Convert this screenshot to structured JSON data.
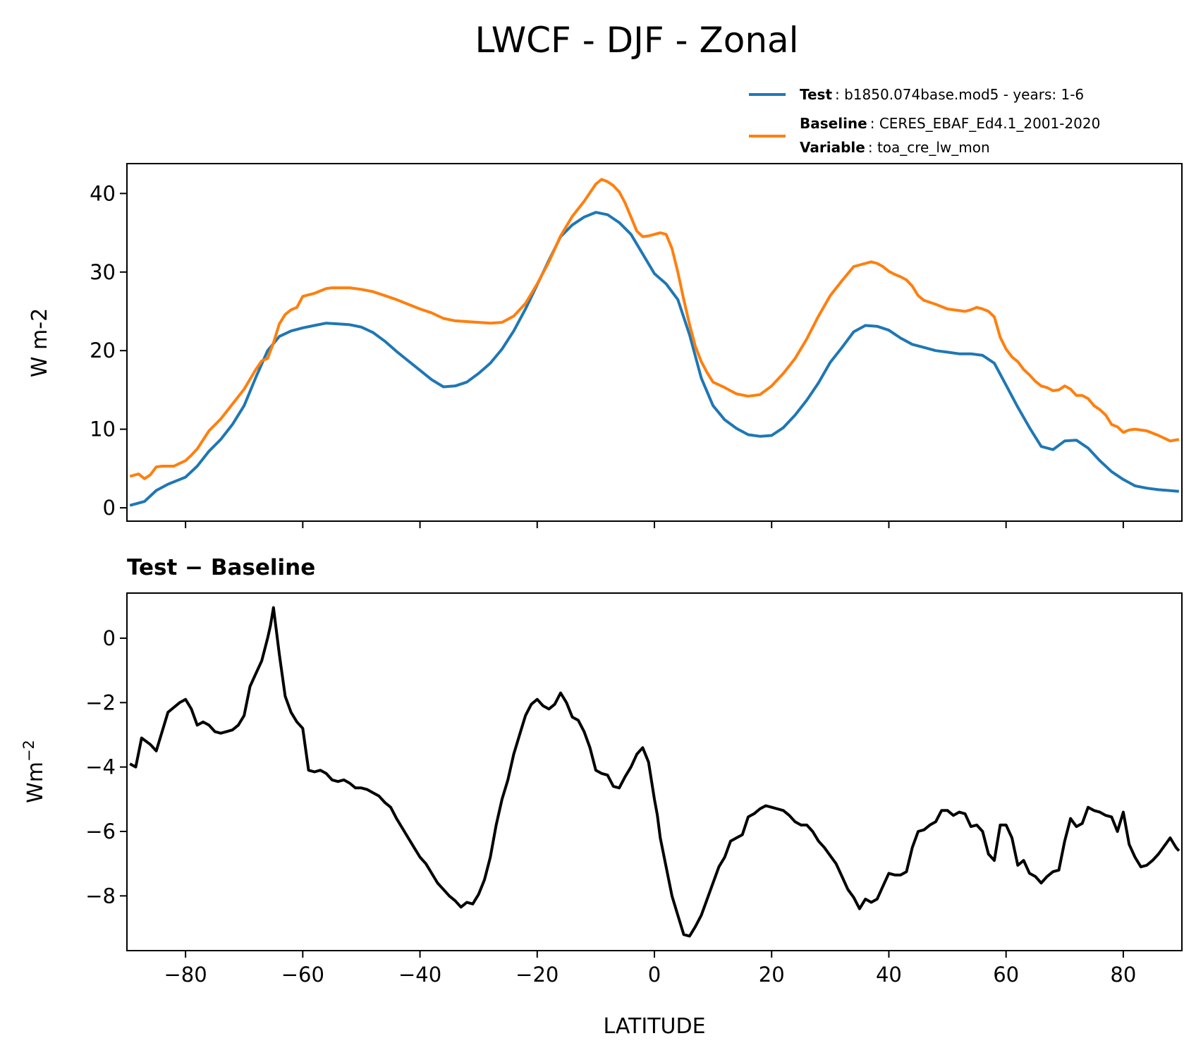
{
  "chart_data": [
    {
      "type": "line",
      "title": "LWCF - DJF - Zonal",
      "ylabel": "W m-2",
      "xlim": [
        -90,
        90
      ],
      "ylim": [
        -1.7,
        43.8
      ],
      "yticks": [
        0,
        10,
        20,
        30,
        40
      ],
      "xticks": [
        -80,
        -60,
        -40,
        -20,
        0,
        20,
        40,
        60,
        80
      ],
      "legend": [
        {
          "bold": "Test",
          "text": ": b1850.074base.mod5 - years: 1-6",
          "color": "#1f77b4"
        },
        {
          "bold": "Baseline",
          "text": ": CERES_EBAF_Ed4.1_2001-2020",
          "color": "#ff7f0e"
        },
        {
          "bold": "Variable",
          "text": ": toa_cre_lw_mon"
        }
      ],
      "series": [
        {
          "name": "Test",
          "color": "#1f77b4",
          "x": [
            -89.5,
            -87,
            -85,
            -83,
            -80,
            -78,
            -76,
            -74,
            -72,
            -70,
            -68,
            -66,
            -64,
            -62,
            -60,
            -58,
            -56,
            -54,
            -52,
            -50,
            -48,
            -46,
            -44,
            -42,
            -40,
            -38,
            -36,
            -34,
            -32,
            -30,
            -28,
            -26,
            -24,
            -22,
            -20,
            -18,
            -16,
            -14,
            -12,
            -10,
            -8,
            -6,
            -4,
            -2,
            0,
            2,
            4,
            6,
            8,
            10,
            12,
            14,
            16,
            18,
            20,
            22,
            24,
            26,
            28,
            30,
            32,
            34,
            36,
            38,
            40,
            42,
            44,
            46,
            48,
            50,
            52,
            54,
            56,
            58,
            60,
            62,
            64,
            66,
            68,
            70,
            72,
            74,
            76,
            78,
            80,
            82,
            84,
            86,
            89.5
          ],
          "values": [
            0.3,
            0.8,
            2.2,
            3.0,
            3.9,
            5.3,
            7.2,
            8.7,
            10.6,
            13.0,
            16.6,
            20.0,
            21.8,
            22.5,
            22.9,
            23.2,
            23.5,
            23.4,
            23.3,
            23.0,
            22.3,
            21.2,
            19.9,
            18.7,
            17.5,
            16.3,
            15.4,
            15.5,
            16.0,
            17.1,
            18.4,
            20.2,
            22.5,
            25.3,
            28.4,
            31.5,
            34.5,
            36.0,
            37.0,
            37.6,
            37.3,
            36.3,
            34.8,
            32.3,
            29.8,
            28.5,
            26.5,
            22.0,
            16.5,
            13.0,
            11.2,
            10.1,
            9.3,
            9.1,
            9.2,
            10.2,
            11.8,
            13.7,
            15.9,
            18.5,
            20.4,
            22.4,
            23.2,
            23.1,
            22.6,
            21.6,
            20.8,
            20.4,
            20.0,
            19.8,
            19.6,
            19.6,
            19.4,
            18.4,
            15.6,
            12.8,
            10.2,
            7.8,
            7.4,
            8.5,
            8.6,
            7.6,
            6.0,
            4.6,
            3.6,
            2.8,
            2.5,
            2.3,
            2.1
          ]
        },
        {
          "name": "Baseline",
          "color": "#ff7f0e",
          "x": [
            -89.5,
            -88,
            -87,
            -86,
            -85,
            -84,
            -82,
            -80,
            -79,
            -78,
            -76,
            -74,
            -72,
            -70,
            -68,
            -67,
            -66,
            -65,
            -64,
            -63,
            -62,
            -61,
            -60,
            -59,
            -58,
            -57,
            -56,
            -55,
            -54,
            -52,
            -50,
            -48,
            -46,
            -44,
            -42,
            -40,
            -38,
            -36,
            -34,
            -32,
            -30,
            -28,
            -26,
            -24,
            -22,
            -20,
            -18,
            -16,
            -14,
            -12,
            -10,
            -9,
            -8,
            -7,
            -6,
            -5,
            -4,
            -3,
            -2,
            -1,
            0,
            1,
            2,
            3,
            4,
            5,
            6,
            7,
            8,
            9,
            10,
            12,
            14,
            16,
            18,
            20,
            22,
            24,
            26,
            28,
            30,
            32,
            34,
            36,
            37,
            38,
            39,
            40,
            41,
            42,
            43,
            44,
            45,
            46,
            48,
            50,
            52,
            53,
            54,
            55,
            56,
            57,
            58,
            59,
            60,
            61,
            62,
            63,
            64,
            65,
            66,
            67,
            68,
            69,
            70,
            71,
            72,
            73,
            74,
            75,
            76,
            77,
            78,
            79,
            80,
            81,
            82,
            84,
            86,
            88,
            89.5
          ],
          "values": [
            4.0,
            4.3,
            3.7,
            4.2,
            5.2,
            5.3,
            5.3,
            6.0,
            6.7,
            7.5,
            9.8,
            11.3,
            13.2,
            15.1,
            17.6,
            18.7,
            19.0,
            21.0,
            23.4,
            24.6,
            25.2,
            25.5,
            26.9,
            27.1,
            27.3,
            27.6,
            27.9,
            28.0,
            28.0,
            28.0,
            27.8,
            27.5,
            27.0,
            26.5,
            25.9,
            25.3,
            24.8,
            24.1,
            23.8,
            23.7,
            23.6,
            23.5,
            23.6,
            24.4,
            26.0,
            28.5,
            31.3,
            34.6,
            37.1,
            39.0,
            41.2,
            41.8,
            41.5,
            41.0,
            40.2,
            38.8,
            37.0,
            35.2,
            34.5,
            34.6,
            34.8,
            35.0,
            34.8,
            33.0,
            30.0,
            26.5,
            23.3,
            20.5,
            18.6,
            17.2,
            16.0,
            15.3,
            14.5,
            14.2,
            14.4,
            15.5,
            17.1,
            19.0,
            21.5,
            24.4,
            27.0,
            28.9,
            30.7,
            31.1,
            31.3,
            31.1,
            30.7,
            30.1,
            29.7,
            29.4,
            29.0,
            28.2,
            27.0,
            26.4,
            25.9,
            25.3,
            25.1,
            25.0,
            25.2,
            25.5,
            25.3,
            25.0,
            24.3,
            21.7,
            20.2,
            19.2,
            18.6,
            17.6,
            16.9,
            16.1,
            15.5,
            15.3,
            14.9,
            15.0,
            15.5,
            15.1,
            14.3,
            14.3,
            13.9,
            13.0,
            12.5,
            11.8,
            10.6,
            10.3,
            9.6,
            9.9,
            10.0,
            9.8,
            9.2,
            8.5,
            8.7
          ]
        }
      ]
    },
    {
      "type": "line",
      "title": "Test − Baseline",
      "xlabel": "LATITUDE",
      "ylabel": "Wm",
      "ylabel_sup": "−2",
      "xlim": [
        -90,
        90
      ],
      "ylim": [
        -9.7,
        1.4
      ],
      "yticks": [
        0,
        -2,
        -4,
        -6,
        -8
      ],
      "xticks": [
        -80,
        -60,
        -40,
        -20,
        0,
        20,
        40,
        60,
        80
      ],
      "series": [
        {
          "name": "Test − Baseline",
          "color": "#000000",
          "x": [
            -89.5,
            -88.5,
            -87.5,
            -86,
            -85,
            -84,
            -83,
            -81,
            -80,
            -79,
            -78,
            -77,
            -76,
            -75,
            -74,
            -73,
            -72,
            -71,
            -70,
            -69,
            -68,
            -67,
            -66,
            -65.5,
            -65,
            -64,
            -63,
            -62,
            -61,
            -60,
            -59,
            -58,
            -57,
            -56,
            -55,
            -54,
            -53,
            -52,
            -51,
            -50,
            -49,
            -48,
            -47,
            -46,
            -45,
            -44,
            -43,
            -42,
            -41,
            -40,
            -39,
            -38,
            -37,
            -36,
            -35,
            -34,
            -33,
            -32,
            -31,
            -30,
            -29,
            -28,
            -27,
            -26,
            -25,
            -24,
            -23,
            -22,
            -21,
            -20,
            -19,
            -18,
            -17,
            -16,
            -15,
            -14,
            -13,
            -12,
            -11,
            -10,
            -9,
            -8,
            -7,
            -6,
            -5,
            -4,
            -3,
            -2,
            -1,
            0,
            0.5,
            1,
            2,
            3,
            4,
            5,
            6,
            7,
            8,
            9,
            10,
            11,
            12,
            13,
            14,
            15,
            16,
            17,
            18,
            19,
            20,
            21,
            22,
            23,
            24,
            25,
            26,
            27,
            28,
            29,
            30,
            31,
            32,
            33,
            34,
            35,
            36,
            37,
            38,
            39,
            40,
            41,
            42,
            43,
            44,
            45,
            46,
            47,
            48,
            49,
            50,
            51,
            52,
            53,
            54,
            55,
            56,
            57,
            58,
            59,
            60,
            61,
            62,
            63,
            64,
            65,
            66,
            67,
            68,
            69,
            70,
            71,
            72,
            73,
            74,
            75,
            76,
            77,
            78,
            79,
            80,
            81,
            82,
            83,
            84,
            85,
            86,
            87,
            88,
            89,
            89.5
          ],
          "values": [
            -3.9,
            -4.0,
            -3.1,
            -3.3,
            -3.5,
            -2.9,
            -2.3,
            -2.0,
            -1.9,
            -2.2,
            -2.7,
            -2.6,
            -2.7,
            -2.9,
            -2.95,
            -2.9,
            -2.85,
            -2.7,
            -2.4,
            -1.5,
            -1.1,
            -0.7,
            0.0,
            0.4,
            0.95,
            -0.5,
            -1.8,
            -2.3,
            -2.6,
            -2.8,
            -4.1,
            -4.15,
            -4.1,
            -4.2,
            -4.4,
            -4.45,
            -4.4,
            -4.5,
            -4.65,
            -4.65,
            -4.7,
            -4.8,
            -4.9,
            -5.1,
            -5.25,
            -5.6,
            -5.9,
            -6.2,
            -6.5,
            -6.8,
            -7.0,
            -7.3,
            -7.6,
            -7.8,
            -8.0,
            -8.15,
            -8.35,
            -8.2,
            -8.25,
            -7.95,
            -7.5,
            -6.8,
            -5.8,
            -5.0,
            -4.4,
            -3.6,
            -3.0,
            -2.4,
            -2.05,
            -1.9,
            -2.1,
            -2.2,
            -2.05,
            -1.7,
            -2.0,
            -2.45,
            -2.55,
            -2.9,
            -3.4,
            -4.1,
            -4.2,
            -4.25,
            -4.6,
            -4.65,
            -4.3,
            -4.0,
            -3.6,
            -3.4,
            -3.85,
            -5.0,
            -5.5,
            -6.2,
            -7.1,
            -8.0,
            -8.6,
            -9.2,
            -9.25,
            -8.95,
            -8.6,
            -8.1,
            -7.6,
            -7.1,
            -6.8,
            -6.3,
            -6.2,
            -6.1,
            -5.55,
            -5.45,
            -5.3,
            -5.2,
            -5.25,
            -5.3,
            -5.35,
            -5.5,
            -5.7,
            -5.8,
            -5.8,
            -6.0,
            -6.3,
            -6.5,
            -6.75,
            -7.0,
            -7.4,
            -7.8,
            -8.05,
            -8.4,
            -8.1,
            -8.2,
            -8.1,
            -7.7,
            -7.3,
            -7.35,
            -7.35,
            -7.25,
            -6.5,
            -6.0,
            -5.95,
            -5.8,
            -5.7,
            -5.35,
            -5.35,
            -5.5,
            -5.4,
            -5.45,
            -5.85,
            -5.8,
            -6.0,
            -6.7,
            -6.9,
            -5.8,
            -5.8,
            -6.2,
            -7.05,
            -6.9,
            -7.3,
            -7.4,
            -7.6,
            -7.4,
            -7.25,
            -7.2,
            -6.3,
            -5.6,
            -5.85,
            -5.75,
            -5.25,
            -5.35,
            -5.4,
            -5.5,
            -5.55,
            -6.0,
            -5.4,
            -6.4,
            -6.8,
            -7.1,
            -7.05,
            -6.9,
            -6.7,
            -6.45,
            -6.2,
            -6.5,
            -6.6
          ]
        }
      ]
    }
  ]
}
